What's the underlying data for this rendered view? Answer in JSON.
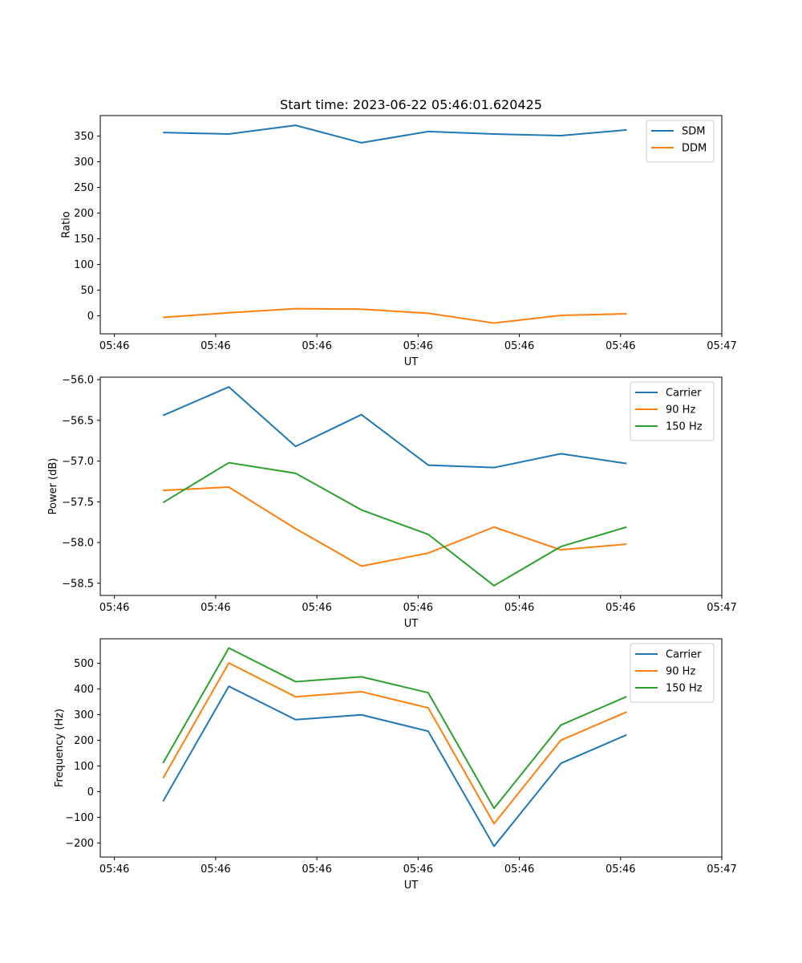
{
  "title": "Start time: 2023-06-22 05:46:01.620425",
  "colors": {
    "blue": "#1f77b4",
    "orange": "#ff7f0e",
    "green": "#2ca02c"
  },
  "chart_data": [
    {
      "type": "line",
      "title": "Start time: 2023-06-22 05:46:01.620425",
      "xlabel": "UT",
      "ylabel": "Ratio",
      "x_tick_labels": [
        "05:46",
        "05:46",
        "05:46",
        "05:46",
        "05:46",
        "05:46",
        "05:47"
      ],
      "x_ticks": [
        0,
        1,
        2,
        3,
        4,
        5,
        6
      ],
      "xlim": [
        -0.14,
        6.0
      ],
      "y_ticks": [
        0,
        50,
        100,
        150,
        200,
        250,
        300,
        350
      ],
      "ylim": [
        -35,
        390
      ],
      "x": [
        0.48,
        1.13,
        1.79,
        2.44,
        3.1,
        3.75,
        4.41,
        5.06
      ],
      "series": [
        {
          "name": "SDM",
          "color": "#1f77b4",
          "values": [
            357,
            354,
            371,
            337,
            359,
            354,
            351,
            362
          ]
        },
        {
          "name": "DDM",
          "color": "#ff7f0e",
          "values": [
            -3,
            6,
            14,
            13,
            5,
            -14,
            1,
            4
          ]
        }
      ],
      "legend": "upper right",
      "grid": false
    },
    {
      "type": "line",
      "title": "",
      "xlabel": "UT",
      "ylabel": "Power (dB)",
      "x_tick_labels": [
        "05:46",
        "05:46",
        "05:46",
        "05:46",
        "05:46",
        "05:46",
        "05:47"
      ],
      "x_ticks": [
        0,
        1,
        2,
        3,
        4,
        5,
        6
      ],
      "xlim": [
        -0.14,
        6.0
      ],
      "y_tick_labels": [
        "−56.0",
        "−56.5",
        "−57.0",
        "−57.5",
        "−58.0",
        "−58.5"
      ],
      "y_ticks": [
        -56.0,
        -56.5,
        -57.0,
        -57.5,
        -58.0,
        -58.5
      ],
      "ylim": [
        -58.65,
        -55.97
      ],
      "x": [
        0.48,
        1.13,
        1.79,
        2.44,
        3.1,
        3.75,
        4.41,
        5.06
      ],
      "series": [
        {
          "name": "Carrier",
          "color": "#1f77b4",
          "values": [
            -56.44,
            -56.09,
            -56.82,
            -56.43,
            -57.05,
            -57.08,
            -56.91,
            -57.03
          ]
        },
        {
          "name": "90 Hz",
          "color": "#ff7f0e",
          "values": [
            -57.36,
            -57.32,
            -57.83,
            -58.29,
            -58.13,
            -57.81,
            -58.09,
            -58.02
          ]
        },
        {
          "name": "150 Hz",
          "color": "#2ca02c",
          "values": [
            -57.51,
            -57.02,
            -57.15,
            -57.6,
            -57.9,
            -58.53,
            -58.05,
            -57.81
          ]
        }
      ],
      "legend": "upper right",
      "grid": false
    },
    {
      "type": "line",
      "title": "",
      "xlabel": "UT",
      "ylabel": "Frequency (Hz)",
      "x_tick_labels": [
        "05:46",
        "05:46",
        "05:46",
        "05:46",
        "05:46",
        "05:46",
        "05:47"
      ],
      "x_ticks": [
        0,
        1,
        2,
        3,
        4,
        5,
        6
      ],
      "xlim": [
        -0.14,
        6.0
      ],
      "y_tick_labels": [
        "500",
        "400",
        "300",
        "200",
        "100",
        "0",
        "−100",
        "−200"
      ],
      "y_ticks": [
        500,
        400,
        300,
        200,
        100,
        0,
        -100,
        -200
      ],
      "ylim": [
        -255,
        595
      ],
      "x": [
        0.48,
        1.13,
        1.79,
        2.44,
        3.1,
        3.75,
        4.41,
        5.06
      ],
      "series": [
        {
          "name": "Carrier",
          "color": "#1f77b4",
          "values": [
            -38,
            410,
            280,
            299,
            235,
            -213,
            110,
            221
          ]
        },
        {
          "name": "90 Hz",
          "color": "#ff7f0e",
          "values": [
            52,
            501,
            369,
            389,
            326,
            -125,
            200,
            310
          ]
        },
        {
          "name": "150 Hz",
          "color": "#2ca02c",
          "values": [
            111,
            559,
            428,
            447,
            385,
            -65,
            259,
            370
          ]
        }
      ],
      "legend": "upper right",
      "grid": false
    }
  ]
}
